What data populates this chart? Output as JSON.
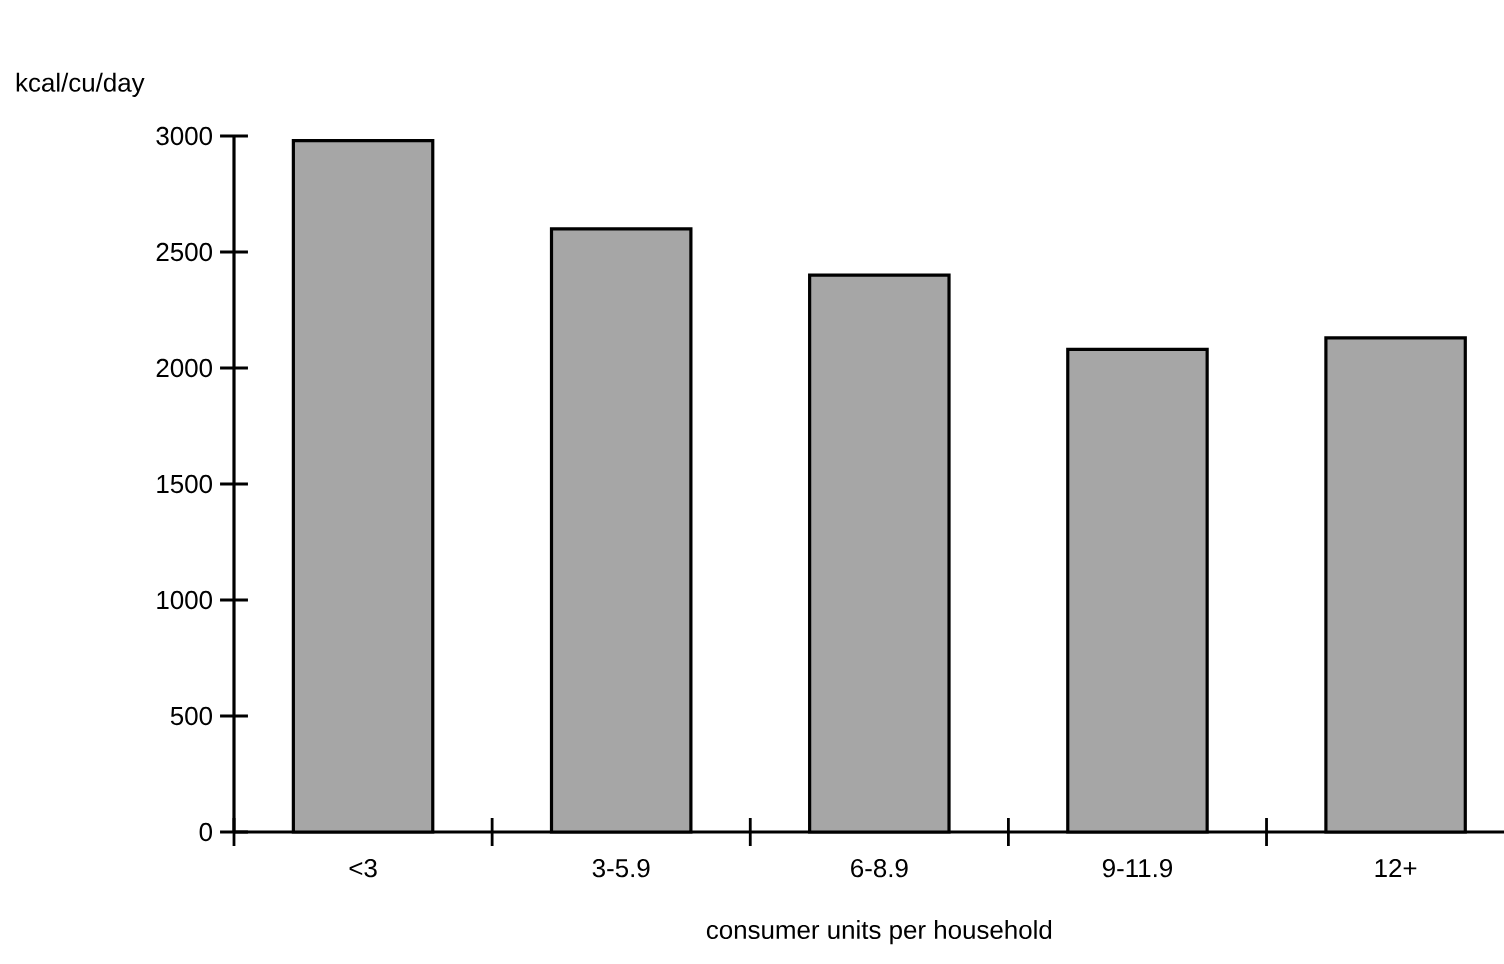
{
  "chart_data": {
    "type": "bar",
    "ylabel": "kcal/cu/day",
    "xlabel": "consumer units per household",
    "categories": [
      "<3",
      "3-5.9",
      "6-8.9",
      "9-11.9",
      "12+"
    ],
    "values": [
      2980,
      2600,
      2400,
      2080,
      2130
    ],
    "color": "#a6a6a6",
    "ylim": [
      0,
      3000
    ],
    "yticks": [
      0,
      500,
      1000,
      1500,
      2000,
      2500,
      3000
    ],
    "grid": false
  }
}
